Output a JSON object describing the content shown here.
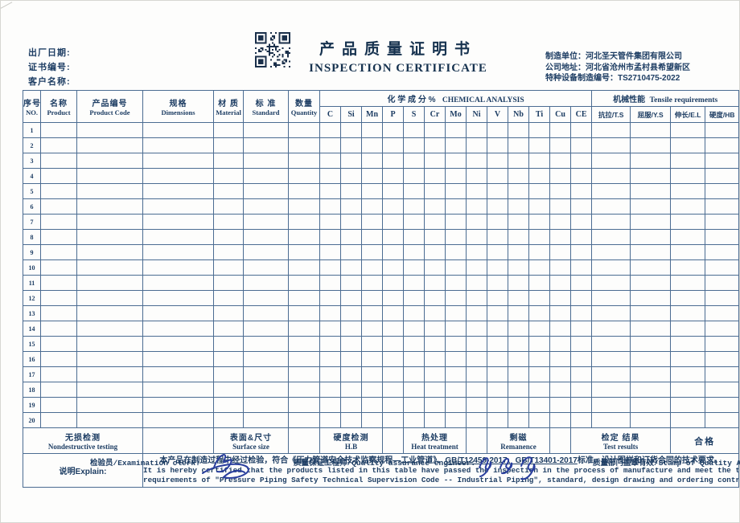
{
  "document": {
    "left_fields": [
      "出厂日期:",
      "证书编号:",
      "客户名称:"
    ],
    "title_cn": "产品质量证明书",
    "title_en": "INSPECTION CERTIFICATE",
    "right_lines": [
      "制造单位：河北圣天管件集团有限公司",
      "公司地址：河北省沧州市孟村县希望新区",
      "特种设备制造编号：TS2710475-2022"
    ]
  },
  "table": {
    "columns": [
      {
        "cn": "序号",
        "en": "NO."
      },
      {
        "cn": "名称",
        "en": "Product"
      },
      {
        "cn": "产品编号",
        "en": "Product Code"
      },
      {
        "cn": "规格",
        "en": "Dimensions"
      },
      {
        "cn": "材 质",
        "en": "Material"
      },
      {
        "cn": "标 准",
        "en": "Standard"
      },
      {
        "cn": "数量",
        "en": "Quantity"
      }
    ],
    "chemical_group_cn": "化  学  成  分 %",
    "chemical_group_en": "CHEMICAL ANALYSIS",
    "chemical_elements": [
      "C",
      "Si",
      "Mn",
      "P",
      "S",
      "Cr",
      "Mo",
      "Ni",
      "V",
      "Nb",
      "Ti",
      "Cu",
      "CE"
    ],
    "mechanical_group_cn": "机械性能",
    "mechanical_group_en": "Tensile requirements",
    "mechanical_columns": [
      "抗拉/T.S",
      "屈服/Y.S",
      "伸长/E.L",
      "硬度/HB"
    ],
    "row_numbers": [
      "1",
      "2",
      "3",
      "4",
      "5",
      "6",
      "7",
      "8",
      "9",
      "10",
      "11",
      "12",
      "13",
      "14",
      "15",
      "16",
      "17",
      "18",
      "19",
      "20"
    ]
  },
  "summary": {
    "ndt_cn": "无损检测",
    "ndt_en": "Nondestructive testing",
    "surface_cn": "表面&尺寸",
    "surface_en": "Surface size",
    "hardness_cn": "硬度检测",
    "hardness_en": "H.B",
    "heat_cn": "热处理",
    "heat_en": "Heat treatment",
    "remanence_cn": "剩磁",
    "remanence_en": "Remanence",
    "result_cn": "检定 结果",
    "result_en": "Test results",
    "result_value": "合格"
  },
  "explain": {
    "label": "说明Explain:",
    "cn_pre": "本产品在制造过程中经过检验，符合《压力管道安全技术监察规程—工业管道》、",
    "cn_underlined": "GB/T12459-2017、GB/T13401-2017",
    "cn_post": "标准、设计图样和订货合同的技术要求。",
    "en_line1": "It is hereby certified that the products listed in this table have passed the inspection in the process of manufacture and meet the technical",
    "en_line2": "requirements of \"Pressure Piping Safety Technical Supervision Code -- Industrial Piping\", standard, design drawing and ordering contract."
  },
  "signatures": {
    "clerk_label": "检验员/Examination clerk:",
    "engineer_label": "质量保证工程师/Quality assurance engineer:",
    "stamp_label": "质量部门盖章有效/Stamp of Quality Assurance"
  },
  "colors": {
    "ink": "#1d3d63",
    "grid_line": "#4b6c92",
    "signature_ink": "#2a3f9e"
  }
}
